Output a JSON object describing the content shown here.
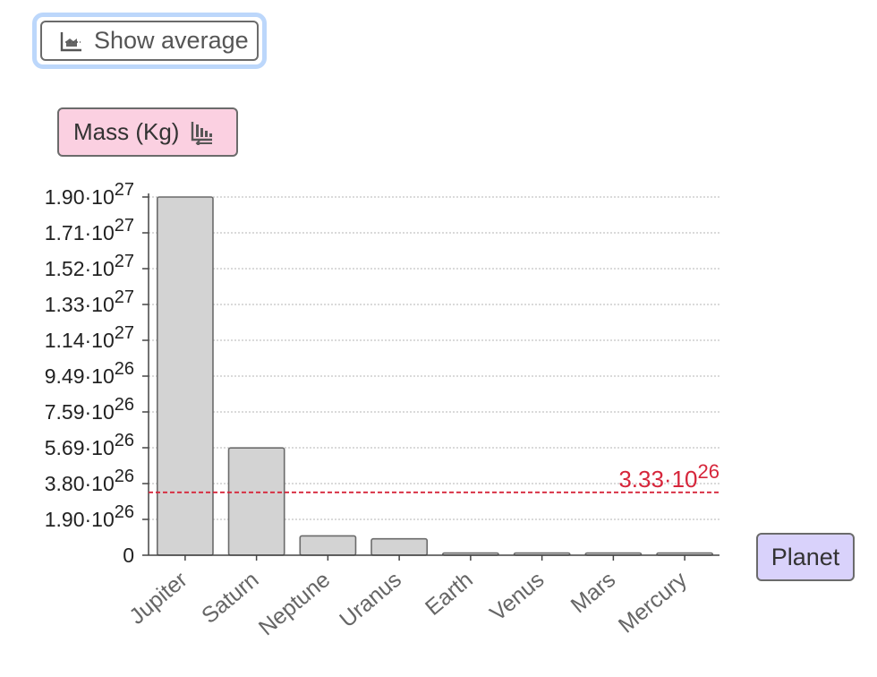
{
  "controls": {
    "average_button_label": "Show average",
    "y_axis_label": "Mass (Kg)",
    "x_axis_label": "Planet"
  },
  "icons": {
    "average": "chart-average-icon",
    "sort": "sort-descending-icon"
  },
  "colors": {
    "bar_fill": "#d3d3d3",
    "bar_stroke": "#6b6b6b",
    "average_line": "#d6263b",
    "y_pill": "#fbd0e1",
    "x_pill": "#d9d2fb"
  },
  "chart_data": {
    "type": "bar",
    "categories": [
      "Jupiter",
      "Saturn",
      "Neptune",
      "Uranus",
      "Earth",
      "Venus",
      "Mars",
      "Mercury"
    ],
    "values": [
      1.898e+27,
      5.683e+26,
      1.024e+26,
      8.681e+25,
      5.97e+24,
      4.87e+24,
      6.42e+23,
      3.3e+23
    ],
    "ylim": [
      0,
      1.898e+27
    ],
    "yticks": [
      {
        "mantissa": "0",
        "exp": ""
      },
      {
        "mantissa": "1.90·10",
        "exp": "26"
      },
      {
        "mantissa": "3.80·10",
        "exp": "26"
      },
      {
        "mantissa": "5.69·10",
        "exp": "26"
      },
      {
        "mantissa": "7.59·10",
        "exp": "26"
      },
      {
        "mantissa": "9.49·10",
        "exp": "26"
      },
      {
        "mantissa": "1.14·10",
        "exp": "27"
      },
      {
        "mantissa": "1.33·10",
        "exp": "27"
      },
      {
        "mantissa": "1.52·10",
        "exp": "27"
      },
      {
        "mantissa": "1.71·10",
        "exp": "27"
      },
      {
        "mantissa": "1.90·10",
        "exp": "27"
      }
    ],
    "average": {
      "value": 3.33e+26,
      "mantissa": "3.33·10",
      "exp": "26"
    },
    "grid": true,
    "xlabel": "Planet",
    "ylabel": "Mass (Kg)"
  }
}
